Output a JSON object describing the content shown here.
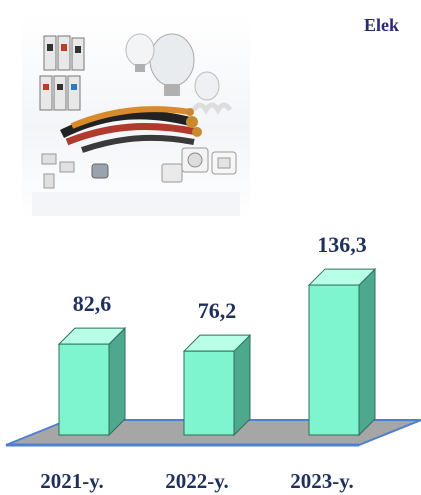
{
  "title_fragment": "Elek",
  "illustration": {
    "icon": "electrical-equipment-illustration"
  },
  "colors": {
    "bar_front": "#7ff5cf",
    "bar_side": "#4ea88d",
    "bar_top": "#b8ffe8",
    "floor": "#a6a6a6",
    "floor_edge": "#4f7fd0",
    "label": "#1f2f5e"
  },
  "chart_data": {
    "type": "bar",
    "categories": [
      "2021-y.",
      "2022-y.",
      "2023-y."
    ],
    "values": [
      82.6,
      76.2,
      136.3
    ],
    "value_labels": [
      "82,6",
      "76,2",
      "136,3"
    ],
    "title": "",
    "xlabel": "",
    "ylabel": "",
    "ylim": [
      0,
      150
    ],
    "grid": false,
    "legend": "none",
    "style": "3d"
  }
}
